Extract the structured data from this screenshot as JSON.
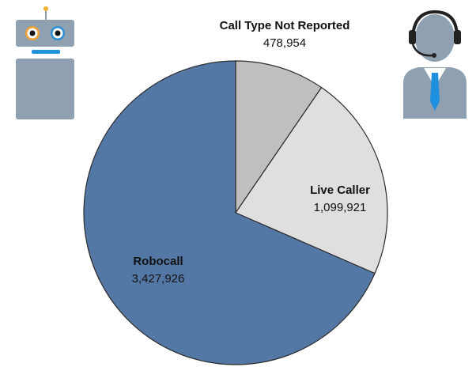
{
  "chart_data": {
    "type": "pie",
    "categories": [
      "Call Type Not Reported",
      "Live Caller",
      "Robocall"
    ],
    "values": [
      478954,
      1099921,
      3427926
    ],
    "value_labels": [
      "478,954",
      "1,099,921",
      "3,427,926"
    ],
    "colors": [
      "#c0bebe",
      "#e0dfdf",
      "#5478a5"
    ]
  }
}
